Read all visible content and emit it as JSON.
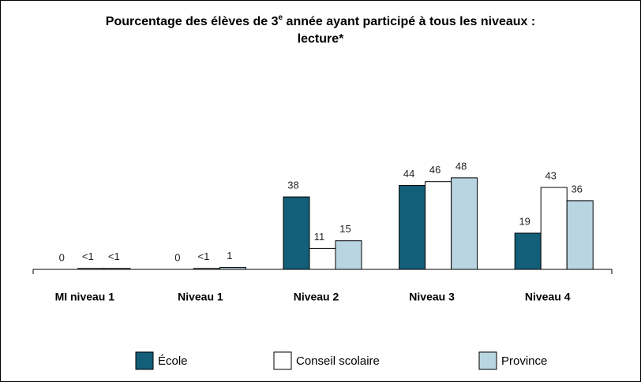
{
  "chart_data": {
    "type": "bar",
    "title_parts": [
      "Pourcentage des élèves de 3",
      "e",
      " année ayant participé à tous les niveaux :",
      "lecture*"
    ],
    "categories": [
      "MI niveau 1",
      "Niveau 1",
      "Niveau 2",
      "Niveau 3",
      "Niveau 4"
    ],
    "series": [
      {
        "name": "École",
        "color": "#135e78",
        "values": [
          0,
          0,
          38,
          44,
          19
        ],
        "value_labels": [
          "0",
          "0",
          "38",
          "44",
          "19"
        ]
      },
      {
        "name": "Conseil scolaire",
        "color": "#ffffff",
        "values": [
          0.5,
          0.5,
          11,
          46,
          43
        ],
        "value_labels": [
          "<1",
          "<1",
          "11",
          "46",
          "43"
        ]
      },
      {
        "name": "Province",
        "color": "#b9d5e1",
        "values": [
          0.5,
          1,
          15,
          48,
          36
        ],
        "value_labels": [
          "<1",
          "1",
          "15",
          "48",
          "36"
        ]
      }
    ]
  }
}
